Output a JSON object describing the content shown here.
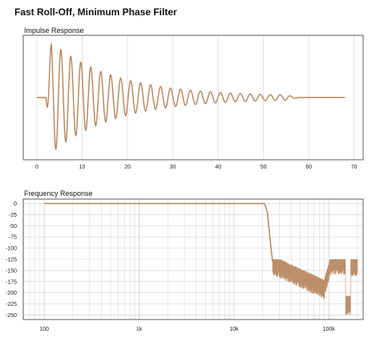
{
  "title": "Fast Roll-Off, Minimum Phase Filter",
  "colors": {
    "trace": "#b5845a",
    "grid": "#d2d2d2",
    "frame": "#333333"
  },
  "chart_data": [
    {
      "type": "line",
      "title": "Impulse Response",
      "xlabel": "",
      "ylabel": "",
      "xlim": [
        -3,
        72
      ],
      "ylim": [
        -1,
        1
      ],
      "x_ticks": [
        "0",
        "10",
        "20",
        "30",
        "40",
        "50",
        "60",
        "70"
      ],
      "grid": "vertical",
      "series": [
        {
          "description": "damped ringing impulse",
          "x_start": 0,
          "x_end": 68,
          "main_peak_x": 4.5,
          "main_peak_y": 0.88,
          "first_trough_x": 6.5,
          "first_trough_y": -0.52,
          "ring_period": 2.2,
          "ring_decay_end_x": 50,
          "flat_after_x": 55
        }
      ]
    },
    {
      "type": "line",
      "title": "Frequency Response",
      "xlabel": "",
      "ylabel": "",
      "xscale": "log",
      "xlim": [
        60,
        230000
      ],
      "ylim": [
        -260,
        10
      ],
      "x_ticks": [
        "100",
        "1k",
        "10k",
        "100k"
      ],
      "y_ticks": [
        "0",
        "-25",
        "-50",
        "-75",
        "-100",
        "-125",
        "-150",
        "-175",
        "-200",
        "-225",
        "-250"
      ],
      "grid": "both",
      "series": [
        {
          "description": "flat passband then steep roll-off at ~22 kHz into noisy stopband",
          "points": [
            [
              100,
              0
            ],
            [
              21000,
              0
            ],
            [
              22500,
              -20
            ],
            [
              24000,
              -80
            ],
            [
              25500,
              -130
            ],
            [
              30000,
              -140
            ],
            [
              40000,
              -160
            ],
            [
              60000,
              -190
            ],
            [
              90000,
              -180
            ],
            [
              100000,
              -130
            ],
            [
              150000,
              -130
            ],
            [
              200000,
              -130
            ]
          ]
        }
      ]
    }
  ]
}
